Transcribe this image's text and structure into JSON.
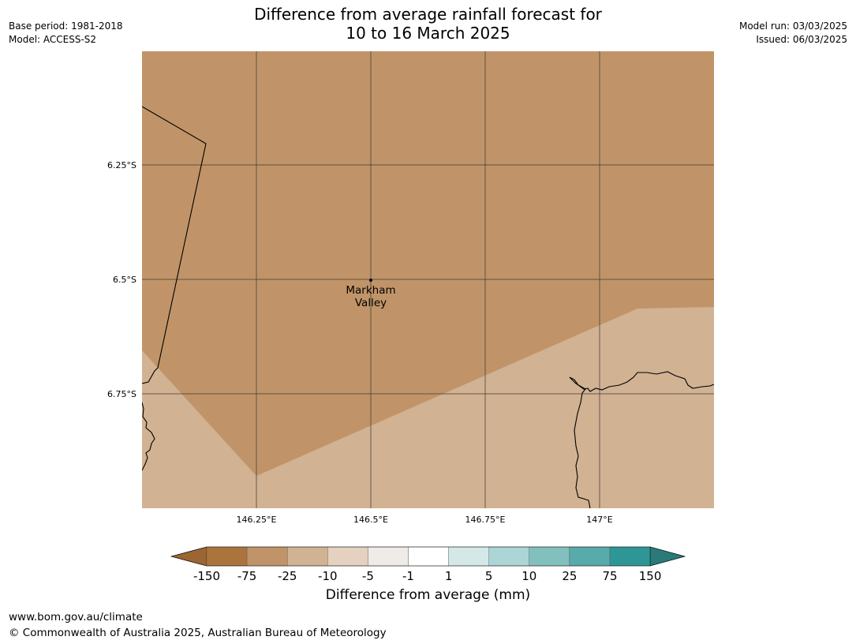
{
  "header": {
    "title_line1": "Difference from average rainfall forecast for",
    "title_line2": "10 to 16 March 2025",
    "base_period": "Base period: 1981-2018",
    "model": "Model: ACCESS-S2",
    "model_run": "Model run: 03/03/2025",
    "issued": "Issued: 06/03/2025"
  },
  "map": {
    "lat_labels": [
      "6.25°S",
      "6.5°S",
      "6.75°S"
    ],
    "lon_labels": [
      "146.25°E",
      "146.5°E",
      "146.75°E",
      "147°E"
    ],
    "place_name_line1": "Markham",
    "place_name_line2": "Valley",
    "region_colors": {
      "band_minus25_to_minus75": "#c09468",
      "band_minus10_to_minus25": "#d1b293"
    },
    "border_color": "#000000",
    "grid_color": "#3a3530"
  },
  "colorbar": {
    "title": "Difference from average (mm)",
    "tick_labels": [
      "-150",
      "-75",
      "-25",
      "-10",
      "-5",
      "-1",
      "1",
      "5",
      "10",
      "25",
      "75",
      "150"
    ],
    "colors": [
      "#9b6633",
      "#ac743d",
      "#c09468",
      "#d1b293",
      "#e4d1bf",
      "#efebe7",
      "#ffffff",
      "#d5e8e8",
      "#acd5d5",
      "#82c0bd",
      "#59aaaa",
      "#2f9696",
      "#2a7a7a"
    ]
  },
  "footer": {
    "url": "www.bom.gov.au/climate",
    "copyright": "© Commonwealth of Australia 2025, Australian Bureau of Meteorology"
  }
}
